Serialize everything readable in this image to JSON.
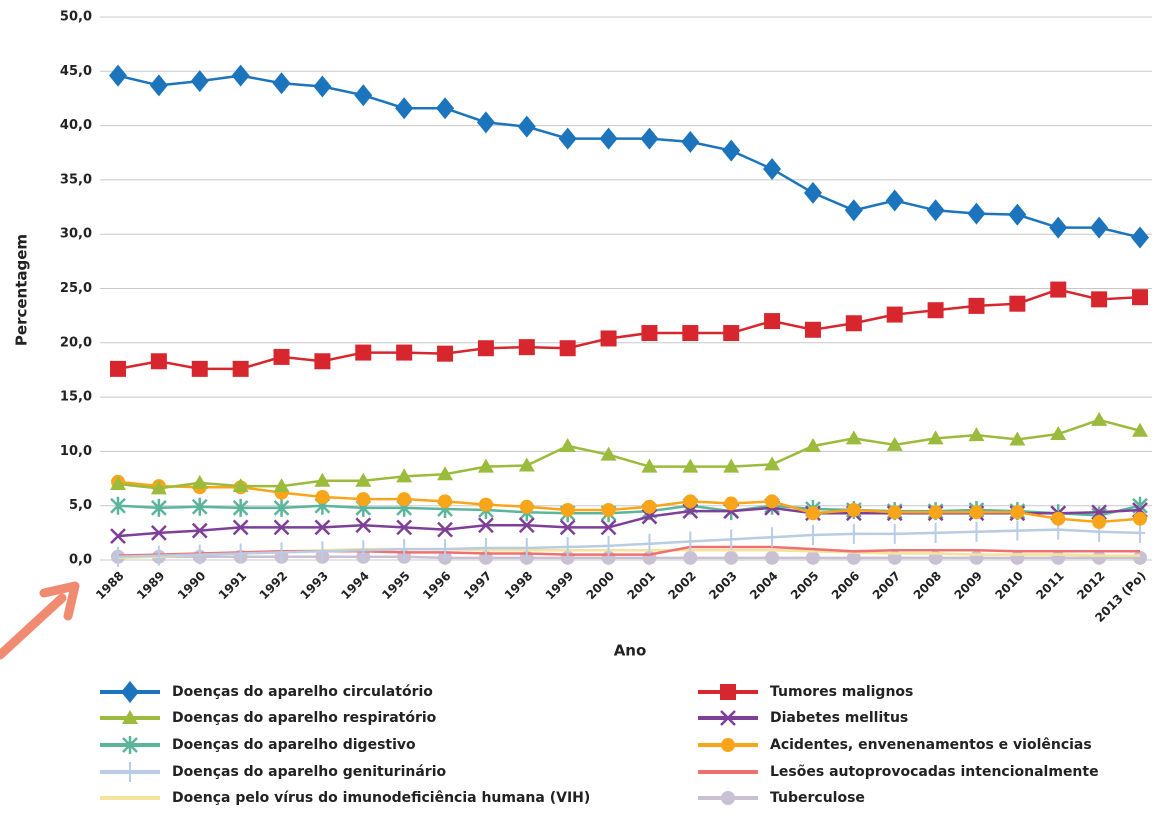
{
  "chart_data": {
    "type": "line",
    "x_label": "Ano",
    "y_label": "Percentagem",
    "categories": [
      "1988",
      "1989",
      "1990",
      "1991",
      "1992",
      "1993",
      "1994",
      "1995",
      "1996",
      "1997",
      "1998",
      "1999",
      "2000",
      "2001",
      "2002",
      "2003",
      "2004",
      "2005",
      "2006",
      "2007",
      "2008",
      "2009",
      "2010",
      "2011",
      "2012",
      "2013 (Po)"
    ],
    "ylim": [
      0,
      50
    ],
    "yticks": [
      {
        "value": 0,
        "label": "0,0"
      },
      {
        "value": 5,
        "label": "5,0"
      },
      {
        "value": 10,
        "label": "10,0"
      },
      {
        "value": 15,
        "label": "15,0"
      },
      {
        "value": 20,
        "label": "20,0"
      },
      {
        "value": 25,
        "label": "25,0"
      },
      {
        "value": 30,
        "label": "30,0"
      },
      {
        "value": 35,
        "label": "35,0"
      },
      {
        "value": 40,
        "label": "40,0"
      },
      {
        "value": 45,
        "label": "45,0"
      },
      {
        "value": 50,
        "label": "50,0"
      }
    ],
    "grid": true,
    "legend": "bottom",
    "series": [
      {
        "name": "Doenças do aparelho circulatório",
        "color": "#1c75bc",
        "marker": "diamond",
        "values": [
          44.6,
          43.7,
          44.1,
          44.6,
          43.9,
          43.6,
          42.8,
          41.6,
          41.6,
          40.3,
          39.9,
          38.8,
          38.8,
          38.8,
          38.5,
          37.7,
          36.0,
          33.8,
          32.2,
          33.1,
          32.2,
          31.9,
          31.8,
          30.6,
          30.6,
          29.7
        ]
      },
      {
        "name": "Tumores malignos",
        "color": "#d7262e",
        "marker": "square",
        "values": [
          17.6,
          18.3,
          17.6,
          17.6,
          18.7,
          18.3,
          19.1,
          19.1,
          19.0,
          19.5,
          19.6,
          19.5,
          20.4,
          20.9,
          20.9,
          20.9,
          22.0,
          21.2,
          21.8,
          22.6,
          23.0,
          23.4,
          23.6,
          24.9,
          24.0,
          24.2
        ]
      },
      {
        "name": "Doenças do aparelho respiratório",
        "color": "#9bbb3c",
        "marker": "triangle",
        "values": [
          7.0,
          6.6,
          7.1,
          6.8,
          6.8,
          7.3,
          7.3,
          7.7,
          7.9,
          8.6,
          8.7,
          10.5,
          9.7,
          8.6,
          8.6,
          8.6,
          8.8,
          10.5,
          11.2,
          10.6,
          11.2,
          11.5,
          11.1,
          11.6,
          12.9,
          11.9
        ]
      },
      {
        "name": "Diabetes mellitus",
        "color": "#7e3f98",
        "marker": "x",
        "values": [
          2.2,
          2.5,
          2.7,
          3.0,
          3.0,
          3.0,
          3.2,
          3.0,
          2.8,
          3.2,
          3.2,
          3.0,
          3.0,
          4.0,
          4.5,
          4.5,
          4.8,
          4.3,
          4.3,
          4.3,
          4.3,
          4.3,
          4.3,
          4.3,
          4.4,
          4.6
        ]
      },
      {
        "name": "Doenças do aparelho digestivo",
        "color": "#5bb59b",
        "marker": "asterisk",
        "values": [
          5.0,
          4.8,
          4.9,
          4.8,
          4.8,
          5.0,
          4.8,
          4.8,
          4.7,
          4.6,
          4.4,
          4.3,
          4.3,
          4.5,
          5.0,
          4.5,
          5.0,
          4.7,
          4.6,
          4.5,
          4.5,
          4.6,
          4.5,
          4.3,
          4.1,
          5.0
        ]
      },
      {
        "name": "Acidentes, envenenamentos e violências",
        "color": "#f9a51a",
        "marker": "circle",
        "values": [
          7.2,
          6.8,
          6.7,
          6.7,
          6.2,
          5.8,
          5.6,
          5.6,
          5.4,
          5.1,
          4.9,
          4.6,
          4.6,
          4.9,
          5.4,
          5.2,
          5.4,
          4.3,
          4.6,
          4.4,
          4.4,
          4.4,
          4.4,
          3.8,
          3.5,
          3.8
        ]
      },
      {
        "name": "Doenças do aparelho geniturinário",
        "color": "#b8cce4",
        "marker": "plus",
        "values": [
          0.3,
          0.4,
          0.5,
          0.6,
          0.7,
          0.8,
          0.9,
          1.0,
          1.0,
          1.1,
          1.1,
          1.2,
          1.3,
          1.5,
          1.7,
          1.9,
          2.1,
          2.3,
          2.4,
          2.4,
          2.5,
          2.6,
          2.7,
          2.8,
          2.6,
          2.5
        ]
      },
      {
        "name": "Lesões autoprovocadas intencionalmente",
        "color": "#f07070",
        "marker": "none",
        "values": [
          0.4,
          0.5,
          0.6,
          0.7,
          0.8,
          0.8,
          0.8,
          0.7,
          0.7,
          0.6,
          0.6,
          0.5,
          0.5,
          0.5,
          1.2,
          1.2,
          1.2,
          1.0,
          0.8,
          0.9,
          0.9,
          0.9,
          0.8,
          0.8,
          0.8,
          0.8
        ]
      },
      {
        "name": "Doença pelo vírus do imunodeficiência humana (VIH)",
        "color": "#f3e39b",
        "marker": "none",
        "values": [
          0.2,
          0.3,
          0.5,
          0.7,
          0.8,
          0.9,
          1.0,
          1.0,
          1.0,
          0.9,
          0.9,
          0.9,
          0.9,
          0.9,
          0.9,
          0.9,
          0.9,
          0.8,
          0.7,
          0.6,
          0.6,
          0.5,
          0.5,
          0.5,
          0.4,
          0.4
        ]
      },
      {
        "name": "Tuberculose",
        "color": "#c9c0d3",
        "marker": "circle",
        "values": [
          0.3,
          0.3,
          0.3,
          0.3,
          0.3,
          0.3,
          0.3,
          0.3,
          0.2,
          0.2,
          0.2,
          0.2,
          0.2,
          0.2,
          0.2,
          0.2,
          0.2,
          0.2,
          0.2,
          0.2,
          0.2,
          0.2,
          0.2,
          0.2,
          0.2,
          0.2
        ]
      }
    ]
  }
}
